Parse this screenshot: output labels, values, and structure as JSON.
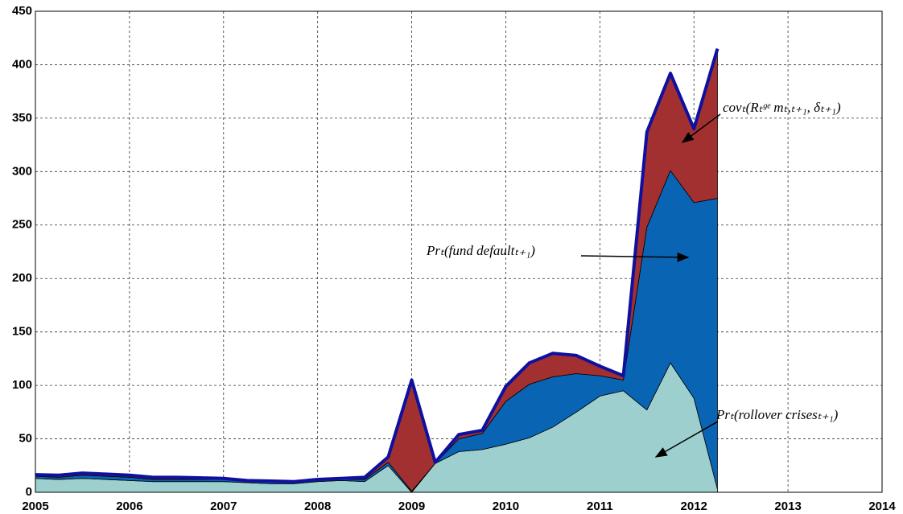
{
  "chart_data": {
    "type": "stacked_area",
    "x": [
      2005,
      2005.25,
      2005.5,
      2005.75,
      2006,
      2006.25,
      2006.5,
      2006.75,
      2007,
      2007.25,
      2007.5,
      2007.75,
      2008,
      2008.25,
      2008.5,
      2008.75,
      2009,
      2009.25,
      2009.5,
      2009.75,
      2010,
      2010.25,
      2010.5,
      2010.75,
      2011,
      2011.25,
      2011.5,
      2011.75,
      2012,
      2012.25
    ],
    "series": [
      {
        "name": "Prₜ(rollover crisesₜ₊₁)",
        "color": "#9ecfcf",
        "values": [
          13,
          12,
          13,
          12,
          11,
          10,
          10,
          10,
          10,
          9,
          8,
          8,
          10,
          11,
          10,
          25,
          0,
          27,
          38,
          40,
          45,
          51,
          61,
          75,
          90,
          95,
          77,
          121,
          88,
          3
        ]
      },
      {
        "name": "Prₜ(fund defaultₜ₊₁)",
        "color": "#0a64b4",
        "values": [
          2,
          2,
          3,
          3,
          3,
          2,
          2,
          2,
          2,
          1,
          1.5,
          1,
          1,
          1,
          2,
          3,
          1,
          0,
          12,
          15,
          40,
          50,
          47,
          36,
          19,
          10,
          171,
          180,
          183,
          272
        ]
      },
      {
        "name": "covₜ(Rₜᵍᵉ mₜ,ₜ₊₁, δₜ₊₁)",
        "color": "#a33030",
        "values": [
          1.5,
          2,
          2,
          2,
          2,
          2,
          2,
          1.5,
          1,
          1,
          1,
          1,
          1,
          1,
          2,
          5,
          104,
          1,
          4,
          3,
          14,
          20,
          22,
          17,
          9,
          4,
          89,
          91,
          69,
          140
        ]
      }
    ],
    "outline_color": "#1010a0",
    "xlim": [
      2005,
      2014
    ],
    "xticks": [
      2005,
      2006,
      2007,
      2008,
      2009,
      2010,
      2011,
      2012,
      2013,
      2014
    ],
    "ylim": [
      0,
      450
    ],
    "yticks": [
      0,
      50,
      100,
      150,
      200,
      250,
      300,
      350,
      400,
      450
    ],
    "grid": true
  }
}
